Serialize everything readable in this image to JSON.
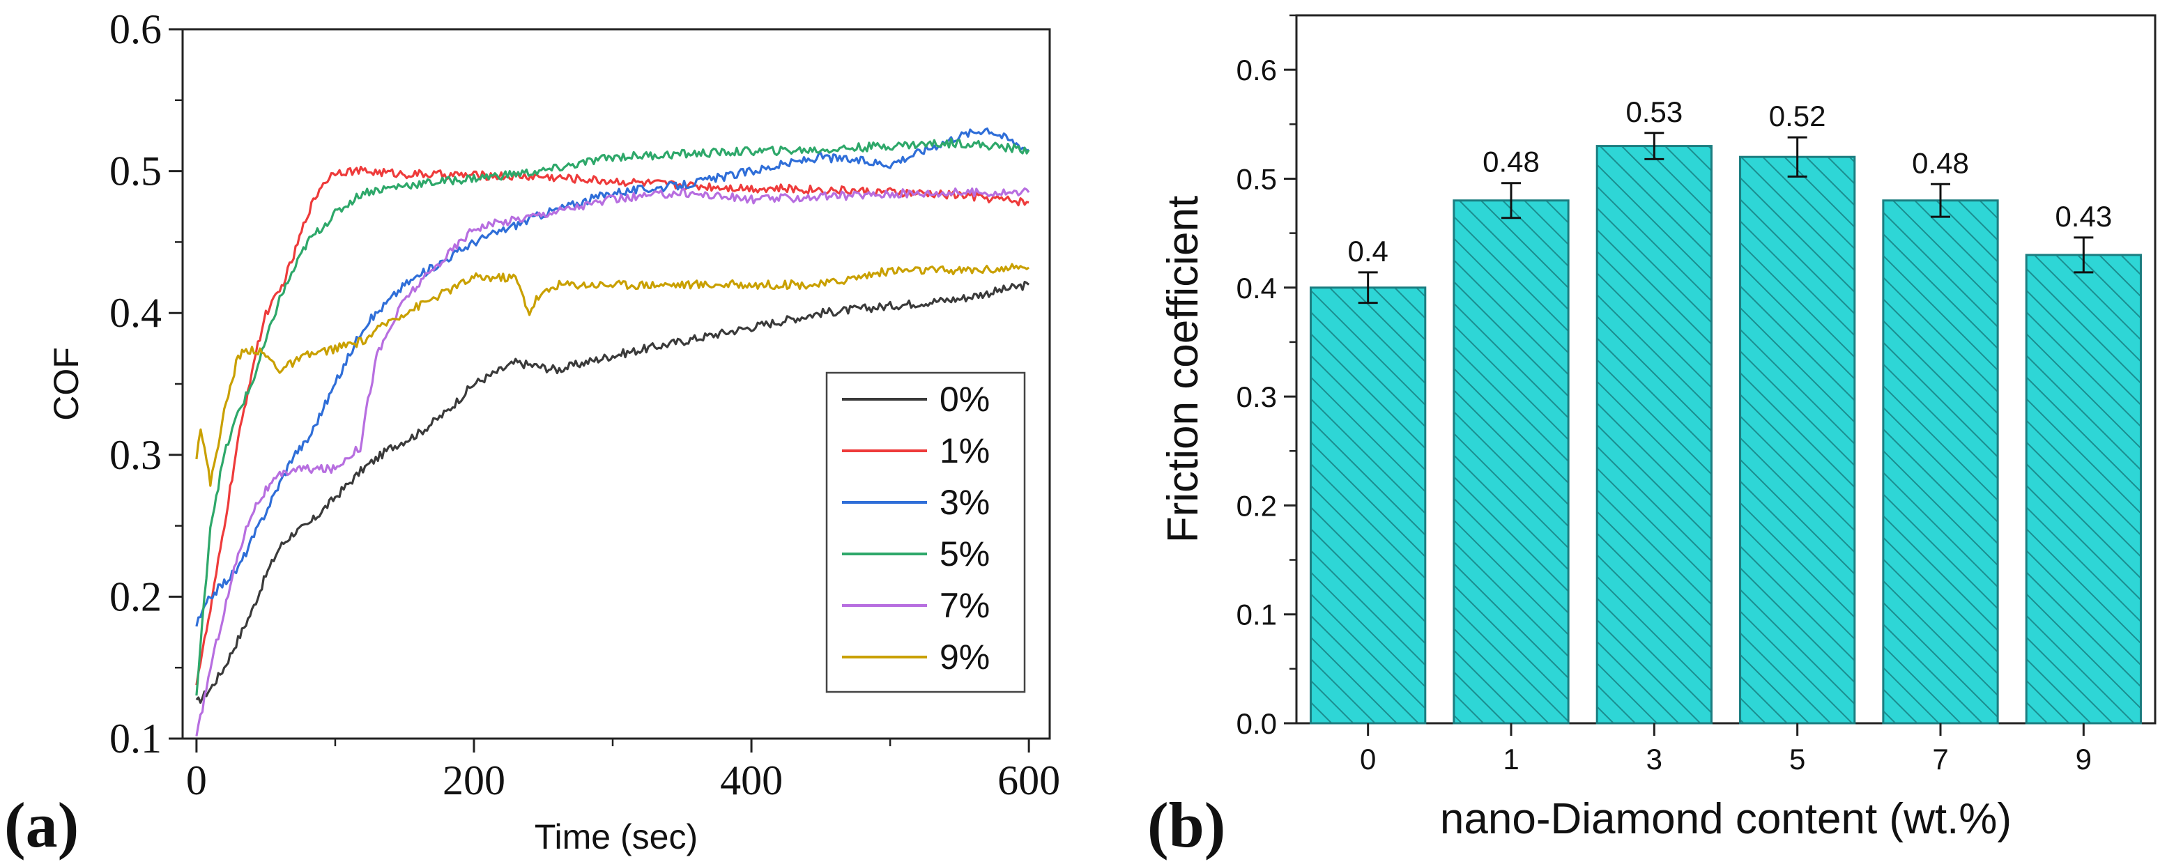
{
  "chart_data": [
    {
      "type": "line",
      "panel_label": "(a)",
      "title": "",
      "xlabel": "Time (sec)",
      "ylabel": "COF",
      "xlim": [
        -10,
        615
      ],
      "ylim": [
        0.1,
        0.6
      ],
      "xticks": [
        0,
        200,
        400,
        600
      ],
      "xtick_labels": [
        "0",
        "200",
        "400",
        "600"
      ],
      "yticks": [
        0.1,
        0.2,
        0.3,
        0.4,
        0.5,
        0.6
      ],
      "ytick_labels": [
        "0.1",
        "0.2",
        "0.3",
        "0.4",
        "0.5",
        "0.6"
      ],
      "grid": false,
      "legend_position": "bottom-right",
      "series": [
        {
          "name": "0%",
          "color": "#3a3a3a",
          "x": [
            0,
            10,
            20,
            30,
            40,
            50,
            60,
            70,
            80,
            90,
            100,
            120,
            140,
            160,
            180,
            200,
            230,
            260,
            300,
            350,
            400,
            450,
            500,
            550,
            600
          ],
          "y": [
            0.125,
            0.135,
            0.15,
            0.17,
            0.19,
            0.215,
            0.235,
            0.245,
            0.25,
            0.26,
            0.27,
            0.29,
            0.305,
            0.315,
            0.33,
            0.35,
            0.365,
            0.36,
            0.37,
            0.38,
            0.39,
            0.4,
            0.405,
            0.41,
            0.42
          ]
        },
        {
          "name": "1%",
          "color": "#ee3b3b",
          "x": [
            0,
            10,
            20,
            30,
            40,
            50,
            60,
            70,
            80,
            90,
            100,
            120,
            150,
            200,
            250,
            300,
            350,
            400,
            450,
            500,
            550,
            600
          ],
          "y": [
            0.14,
            0.19,
            0.25,
            0.31,
            0.36,
            0.4,
            0.415,
            0.44,
            0.47,
            0.49,
            0.5,
            0.5,
            0.498,
            0.497,
            0.496,
            0.493,
            0.49,
            0.488,
            0.487,
            0.485,
            0.483,
            0.478
          ]
        },
        {
          "name": "3%",
          "color": "#2f6ed8",
          "x": [
            0,
            10,
            20,
            30,
            40,
            50,
            60,
            70,
            80,
            90,
            100,
            120,
            150,
            200,
            250,
            300,
            350,
            400,
            450,
            500,
            550,
            570,
            600
          ],
          "y": [
            0.18,
            0.2,
            0.21,
            0.22,
            0.24,
            0.26,
            0.28,
            0.3,
            0.31,
            0.33,
            0.35,
            0.39,
            0.42,
            0.45,
            0.47,
            0.485,
            0.49,
            0.5,
            0.51,
            0.505,
            0.525,
            0.53,
            0.515
          ]
        },
        {
          "name": "5%",
          "color": "#2ea86a",
          "x": [
            0,
            10,
            20,
            30,
            40,
            50,
            60,
            70,
            80,
            90,
            100,
            120,
            150,
            200,
            250,
            300,
            350,
            400,
            450,
            500,
            550,
            600
          ],
          "y": [
            0.13,
            0.25,
            0.3,
            0.33,
            0.35,
            0.38,
            0.41,
            0.43,
            0.45,
            0.46,
            0.47,
            0.485,
            0.49,
            0.495,
            0.5,
            0.51,
            0.512,
            0.514,
            0.515,
            0.518,
            0.52,
            0.515
          ]
        },
        {
          "name": "7%",
          "color": "#b76ee0",
          "x": [
            0,
            10,
            20,
            30,
            40,
            50,
            60,
            70,
            80,
            90,
            100,
            110,
            118,
            122,
            130,
            150,
            180,
            200,
            250,
            300,
            350,
            400,
            450,
            500,
            550,
            600
          ],
          "y": [
            0.1,
            0.15,
            0.19,
            0.23,
            0.26,
            0.275,
            0.285,
            0.29,
            0.29,
            0.29,
            0.29,
            0.3,
            0.305,
            0.33,
            0.37,
            0.41,
            0.44,
            0.46,
            0.47,
            0.48,
            0.485,
            0.48,
            0.482,
            0.484,
            0.485,
            0.485
          ]
        },
        {
          "name": "9%",
          "color": "#c9a000",
          "x": [
            0,
            3,
            10,
            20,
            30,
            40,
            50,
            60,
            80,
            100,
            120,
            140,
            160,
            180,
            200,
            230,
            240,
            245,
            260,
            300,
            350,
            400,
            450,
            500,
            550,
            600
          ],
          "y": [
            0.3,
            0.32,
            0.28,
            0.33,
            0.37,
            0.375,
            0.37,
            0.36,
            0.37,
            0.375,
            0.38,
            0.395,
            0.405,
            0.415,
            0.425,
            0.425,
            0.4,
            0.41,
            0.42,
            0.42,
            0.42,
            0.42,
            0.42,
            0.43,
            0.43,
            0.432
          ]
        }
      ]
    },
    {
      "type": "bar",
      "panel_label": "(b)",
      "title": "",
      "xlabel": "nano-Diamond content (wt.%)",
      "ylabel": "Friction coefficient",
      "categories": [
        "0",
        "1",
        "3",
        "5",
        "7",
        "9"
      ],
      "values": [
        0.4,
        0.48,
        0.53,
        0.52,
        0.48,
        0.43
      ],
      "value_labels": [
        "0.4",
        "0.48",
        "0.53",
        "0.52",
        "0.48",
        "0.43"
      ],
      "errors": [
        0.014,
        0.016,
        0.012,
        0.018,
        0.015,
        0.016
      ],
      "ylim": [
        0.0,
        0.65
      ],
      "yticks": [
        0.0,
        0.1,
        0.2,
        0.3,
        0.4,
        0.5,
        0.6
      ],
      "ytick_labels": [
        "0.0",
        "0.1",
        "0.2",
        "0.3",
        "0.4",
        "0.5",
        "0.6"
      ],
      "grid": false,
      "bar_color": "#2ed6d6",
      "hatch_color": "#1b8e90",
      "edge_color": "#1b7d80"
    }
  ]
}
